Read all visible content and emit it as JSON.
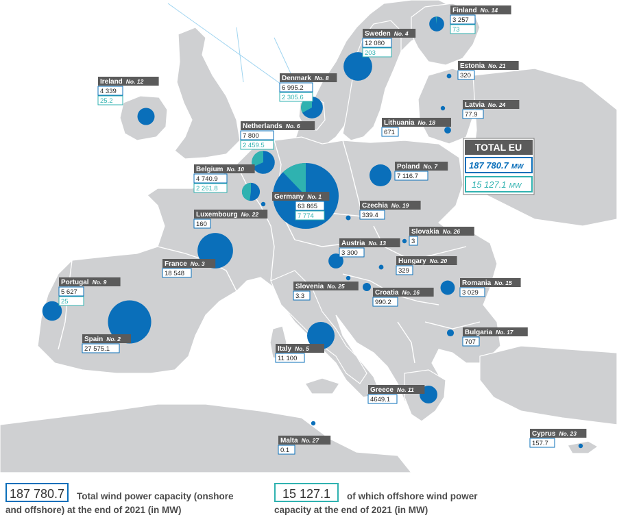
{
  "colors": {
    "land": "#cfd0d2",
    "sea": "#ffffff",
    "border": "#ffffff",
    "onshore": "#0a6fba",
    "offshore": "#2fb2b0",
    "label_bg": "#5b5b5b",
    "label_text": "#ffffff",
    "total_box": "#0a6fba",
    "offshore_box": "#2fb2b0",
    "outline": "#7a7a7a"
  },
  "total": {
    "title": "TOTAL EU",
    "total_value": "187 780.7",
    "offshore_value": "15 127.1",
    "unit": "MW"
  },
  "countries": [
    {
      "id": "finland",
      "name": "Finland",
      "rank": "No. 14",
      "total": "3 257",
      "offshore": "73",
      "total_mw": 3257,
      "offshore_mw": 73
    },
    {
      "id": "sweden",
      "name": "Sweden",
      "rank": "No. 4",
      "total": "12 080",
      "offshore": "203",
      "total_mw": 12080,
      "offshore_mw": 203
    },
    {
      "id": "estonia",
      "name": "Estonia",
      "rank": "No. 21",
      "total": "320",
      "offshore": "",
      "total_mw": 320,
      "offshore_mw": 0
    },
    {
      "id": "ireland",
      "name": "Ireland",
      "rank": "No. 12",
      "total": "4 339",
      "offshore": "25.2",
      "total_mw": 4339,
      "offshore_mw": 25.2
    },
    {
      "id": "denmark",
      "name": "Denmark",
      "rank": "No. 8",
      "total": "6 995.2",
      "offshore": "2 305.6",
      "total_mw": 6995.2,
      "offshore_mw": 2305.6
    },
    {
      "id": "latvia",
      "name": "Latvia",
      "rank": "No. 24",
      "total": "77.9",
      "offshore": "",
      "total_mw": 77.9,
      "offshore_mw": 0
    },
    {
      "id": "lithuania",
      "name": "Lithuania",
      "rank": "No. 18",
      "total": "671",
      "offshore": "",
      "total_mw": 671,
      "offshore_mw": 0
    },
    {
      "id": "netherlands",
      "name": "Netherlands",
      "rank": "No. 6",
      "total": "7 800",
      "offshore": "2 459.5",
      "total_mw": 7800,
      "offshore_mw": 2459.5
    },
    {
      "id": "belgium",
      "name": "Belgium",
      "rank": "No. 10",
      "total": "4 740.9",
      "offshore": "2 261.8",
      "total_mw": 4740.9,
      "offshore_mw": 2261.8
    },
    {
      "id": "poland",
      "name": "Poland",
      "rank": "No. 7",
      "total": "7 116.7",
      "offshore": "",
      "total_mw": 7116.7,
      "offshore_mw": 0
    },
    {
      "id": "germany",
      "name": "Germany",
      "rank": "No. 1",
      "total": "63 865",
      "offshore": "7 774",
      "total_mw": 63865,
      "offshore_mw": 7774
    },
    {
      "id": "luxembourg",
      "name": "Luxembourg",
      "rank": "No. 22",
      "total": "160",
      "offshore": "",
      "total_mw": 160,
      "offshore_mw": 0
    },
    {
      "id": "czechia",
      "name": "Czechia",
      "rank": "No. 19",
      "total": "339.4",
      "offshore": "",
      "total_mw": 339.4,
      "offshore_mw": 0
    },
    {
      "id": "slovakia",
      "name": "Slovakia",
      "rank": "No. 26",
      "total": "3",
      "offshore": "",
      "total_mw": 3,
      "offshore_mw": 0
    },
    {
      "id": "austria",
      "name": "Austria",
      "rank": "No. 13",
      "total": "3 300",
      "offshore": "",
      "total_mw": 3300,
      "offshore_mw": 0
    },
    {
      "id": "france",
      "name": "France",
      "rank": "No. 3",
      "total": "18 548",
      "offshore": "",
      "total_mw": 18548,
      "offshore_mw": 0
    },
    {
      "id": "hungary",
      "name": "Hungary",
      "rank": "No. 20",
      "total": "329",
      "offshore": "",
      "total_mw": 329,
      "offshore_mw": 0
    },
    {
      "id": "portugal",
      "name": "Portugal",
      "rank": "No. 9",
      "total": "5 627",
      "offshore": "25",
      "total_mw": 5627,
      "offshore_mw": 25
    },
    {
      "id": "slovenia",
      "name": "Slovenia",
      "rank": "No. 25",
      "total": "3.3",
      "offshore": "",
      "total_mw": 3.3,
      "offshore_mw": 0
    },
    {
      "id": "croatia",
      "name": "Croatia",
      "rank": "No. 16",
      "total": "990.2",
      "offshore": "",
      "total_mw": 990.2,
      "offshore_mw": 0
    },
    {
      "id": "romania",
      "name": "Romania",
      "rank": "No. 15",
      "total": "3 029",
      "offshore": "",
      "total_mw": 3029,
      "offshore_mw": 0
    },
    {
      "id": "spain",
      "name": "Spain",
      "rank": "No. 2",
      "total": "27 575.1",
      "offshore": "",
      "total_mw": 27575.1,
      "offshore_mw": 0
    },
    {
      "id": "italy",
      "name": "Italy",
      "rank": "No. 5",
      "total": "11 100",
      "offshore": "",
      "total_mw": 11100,
      "offshore_mw": 0
    },
    {
      "id": "bulgaria",
      "name": "Bulgaria",
      "rank": "No. 17",
      "total": "707",
      "offshore": "",
      "total_mw": 707,
      "offshore_mw": 0
    },
    {
      "id": "greece",
      "name": "Greece",
      "rank": "No. 11",
      "total": "4649.1",
      "offshore": "",
      "total_mw": 4649.1,
      "offshore_mw": 0
    },
    {
      "id": "malta",
      "name": "Malta",
      "rank": "No. 27",
      "total": "0.1",
      "offshore": "",
      "total_mw": 0.1,
      "offshore_mw": 0
    },
    {
      "id": "cyprus",
      "name": "Cyprus",
      "rank": "No. 23",
      "total": "157.7",
      "offshore": "",
      "total_mw": 157.7,
      "offshore_mw": 0
    }
  ],
  "legend": {
    "total_value": "187 780.7",
    "total_line1": "Total wind power capacity (onshore",
    "total_line2": "and offshore) at the end of 2021 (in MW)",
    "offshore_value": "15 127.1",
    "offshore_line1": "of which offshore wind power",
    "offshore_line2": "capacity at the end of 2021 (in MW)"
  }
}
